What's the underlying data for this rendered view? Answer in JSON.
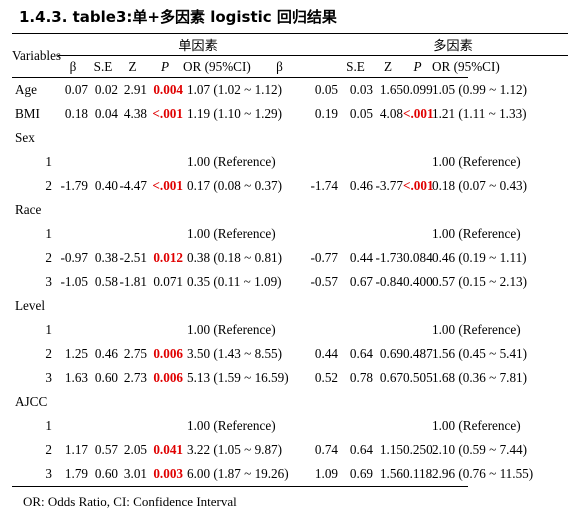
{
  "heading": "1.4.3. table3:单+多因素 logistic 回归结果",
  "table": {
    "variables_label": "Variables",
    "group_uni": "单因素",
    "group_multi": "多因素",
    "columns": [
      "β",
      "S.E",
      "Z",
      "P",
      "OR (95%CI)"
    ],
    "rows": [
      {
        "type": "var",
        "label": "Age",
        "uni": [
          "0.07",
          "0.02",
          "2.91",
          "0.004",
          "1.07 (1.02 ~ 1.12)"
        ],
        "uni_sig": true,
        "multi": [
          "0.05",
          "0.03",
          "1.65",
          "0.099",
          "1.05 (0.99 ~ 1.12)"
        ],
        "multi_sig": false
      },
      {
        "type": "var",
        "label": "BMI",
        "uni": [
          "0.18",
          "0.04",
          "4.38",
          "<.001",
          "1.19 (1.10 ~ 1.29)"
        ],
        "uni_sig": true,
        "multi": [
          "0.19",
          "0.05",
          "4.08",
          "<.001",
          "1.21 (1.11 ~ 1.33)"
        ],
        "multi_sig": true
      },
      {
        "type": "head",
        "label": "Sex"
      },
      {
        "type": "level",
        "label": "1",
        "uni": [
          "",
          "",
          "",
          "",
          "1.00 (Reference)"
        ],
        "uni_sig": false,
        "multi": [
          "",
          "",
          "",
          "",
          "1.00 (Reference)"
        ],
        "multi_sig": false
      },
      {
        "type": "level",
        "label": "2",
        "uni": [
          "-1.79",
          "0.40",
          "-4.47",
          "<.001",
          "0.17 (0.08 ~ 0.37)"
        ],
        "uni_sig": true,
        "multi": [
          "-1.74",
          "0.46",
          "-3.77",
          "<.001",
          "0.18 (0.07 ~ 0.43)"
        ],
        "multi_sig": true
      },
      {
        "type": "head",
        "label": "Race"
      },
      {
        "type": "level",
        "label": "1",
        "uni": [
          "",
          "",
          "",
          "",
          "1.00 (Reference)"
        ],
        "uni_sig": false,
        "multi": [
          "",
          "",
          "",
          "",
          "1.00 (Reference)"
        ],
        "multi_sig": false
      },
      {
        "type": "level",
        "label": "2",
        "uni": [
          "-0.97",
          "0.38",
          "-2.51",
          "0.012",
          "0.38 (0.18 ~ 0.81)"
        ],
        "uni_sig": true,
        "multi": [
          "-0.77",
          "0.44",
          "-1.73",
          "0.084",
          "0.46 (0.19 ~ 1.11)"
        ],
        "multi_sig": false
      },
      {
        "type": "level",
        "label": "3",
        "uni": [
          "-1.05",
          "0.58",
          "-1.81",
          "0.071",
          "0.35 (0.11 ~ 1.09)"
        ],
        "uni_sig": false,
        "multi": [
          "-0.57",
          "0.67",
          "-0.84",
          "0.400",
          "0.57 (0.15 ~ 2.13)"
        ],
        "multi_sig": false
      },
      {
        "type": "head",
        "label": "Level"
      },
      {
        "type": "level",
        "label": "1",
        "uni": [
          "",
          "",
          "",
          "",
          "1.00 (Reference)"
        ],
        "uni_sig": false,
        "multi": [
          "",
          "",
          "",
          "",
          "1.00 (Reference)"
        ],
        "multi_sig": false
      },
      {
        "type": "level",
        "label": "2",
        "uni": [
          "1.25",
          "0.46",
          "2.75",
          "0.006",
          "3.50 (1.43 ~ 8.55)"
        ],
        "uni_sig": true,
        "multi": [
          "0.44",
          "0.64",
          "0.69",
          "0.487",
          "1.56 (0.45 ~ 5.41)"
        ],
        "multi_sig": false
      },
      {
        "type": "level",
        "label": "3",
        "uni": [
          "1.63",
          "0.60",
          "2.73",
          "0.006",
          "5.13 (1.59 ~ 16.59)"
        ],
        "uni_sig": true,
        "multi": [
          "0.52",
          "0.78",
          "0.67",
          "0.505",
          "1.68 (0.36 ~ 7.81)"
        ],
        "multi_sig": false
      },
      {
        "type": "head",
        "label": "AJCC"
      },
      {
        "type": "level",
        "label": "1",
        "uni": [
          "",
          "",
          "",
          "",
          "1.00 (Reference)"
        ],
        "uni_sig": false,
        "multi": [
          "",
          "",
          "",
          "",
          "1.00 (Reference)"
        ],
        "multi_sig": false
      },
      {
        "type": "level",
        "label": "2",
        "uni": [
          "1.17",
          "0.57",
          "2.05",
          "0.041",
          "3.22 (1.05 ~ 9.87)"
        ],
        "uni_sig": true,
        "multi": [
          "0.74",
          "0.64",
          "1.15",
          "0.250",
          "2.10 (0.59 ~ 7.44)"
        ],
        "multi_sig": false
      },
      {
        "type": "level",
        "label": "3",
        "uni": [
          "1.79",
          "0.60",
          "3.01",
          "0.003",
          "6.00 (1.87 ~ 19.26)"
        ],
        "uni_sig": true,
        "multi": [
          "1.09",
          "0.69",
          "1.56",
          "0.118",
          "2.96 (0.76 ~ 11.55)"
        ],
        "multi_sig": false
      }
    ]
  },
  "footnote": "OR: Odds Ratio, CI: Confidence Interval",
  "colors": {
    "significant": "#e00000",
    "text": "#000000"
  }
}
